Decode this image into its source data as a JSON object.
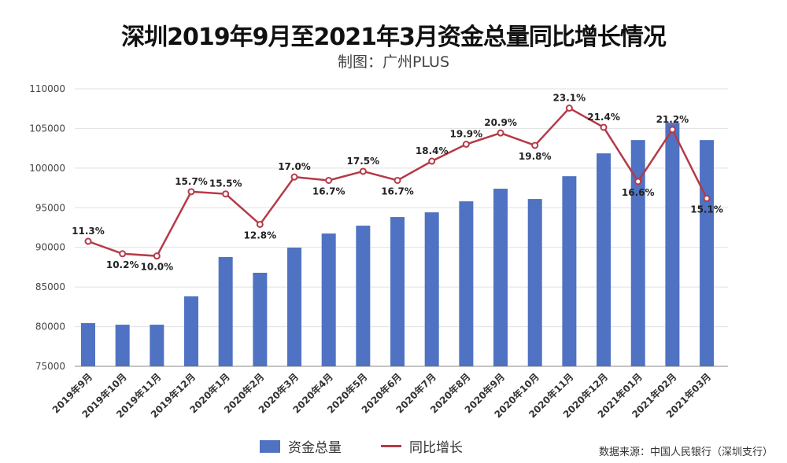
{
  "title": "深圳2019年9月至2021年3月资金总量同比增长情况",
  "subtitle": "制图：广州PLUS",
  "source": "数据来源：中国人民银行（深圳支行）",
  "colors": {
    "bar": "#4f72c2",
    "line": "#b53a48",
    "grid": "#e0e0e0"
  },
  "chart_data": {
    "type": "bar",
    "categories": [
      "2019年9月",
      "2019年10月",
      "2019年11月",
      "2019年12月",
      "2020年1月",
      "2020年2月",
      "2020年3月",
      "2020年4月",
      "2020年5月",
      "2020年6月",
      "2020年7月",
      "2020年8月",
      "2020年9月",
      "2020年10月",
      "2020年11月",
      "2020年12月",
      "2021年01月",
      "2021年02月",
      "2021年03月"
    ],
    "series": [
      {
        "name": "资金总量",
        "type": "bar",
        "values": [
          80450,
          80250,
          80250,
          83820,
          88780,
          86800,
          89970,
          91750,
          92740,
          93830,
          94420,
          95810,
          97400,
          96110,
          98980,
          101860,
          103540,
          105720,
          103540
        ]
      },
      {
        "name": "同比增长",
        "type": "line",
        "values": [
          11.3,
          10.2,
          10.0,
          15.7,
          15.5,
          12.8,
          17.0,
          16.7,
          17.5,
          16.7,
          18.4,
          19.9,
          20.9,
          19.8,
          23.1,
          21.4,
          16.6,
          21.2,
          15.1
        ],
        "labels": [
          "11.3%",
          "10.2%",
          "10.0%",
          "15.7%",
          "15.5%",
          "12.8%",
          "17.0%",
          "16.7%",
          "17.5%",
          "16.7%",
          "18.4%",
          "19.9%",
          "20.9%",
          "19.8%",
          "23.1%",
          "21.4%",
          "16.6%",
          "21.2%",
          "15.1%"
        ]
      }
    ],
    "ylim": [
      75000,
      110000
    ],
    "yticks": [
      "75000",
      "80000",
      "85000",
      "90000",
      "95000",
      "100000",
      "105000",
      "110000"
    ],
    "grid": true,
    "legend": "bottom"
  }
}
